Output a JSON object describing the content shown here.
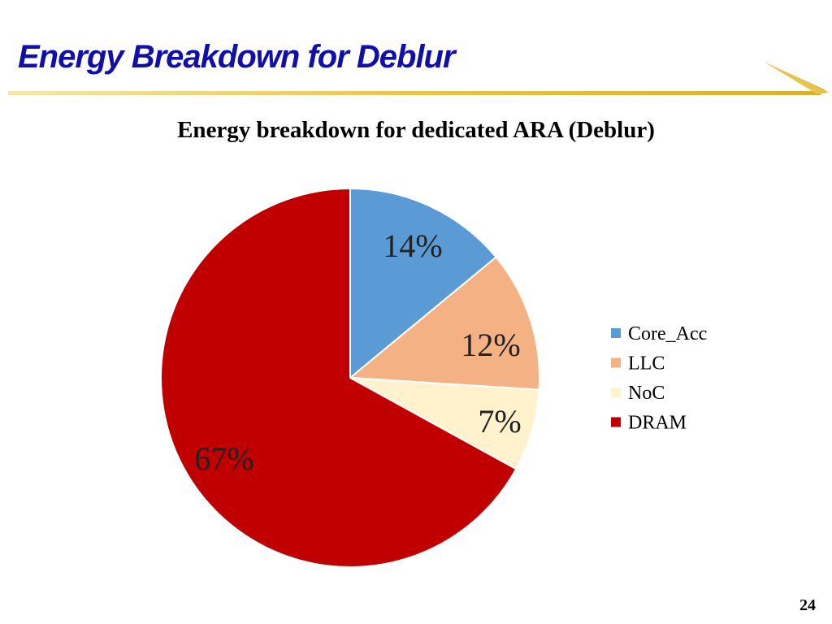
{
  "slide": {
    "title": "Energy Breakdown for Deblur",
    "page_number": "24"
  },
  "colors": {
    "title": "#1010a8",
    "rule": "#e8c44a"
  },
  "chart_data": {
    "type": "pie",
    "title": "Energy breakdown for dedicated ARA (Deblur)",
    "slices": [
      {
        "name": "Core_Acc",
        "value": 14,
        "label": "14%",
        "color": "#5b9bd5"
      },
      {
        "name": "LLC",
        "value": 12,
        "label": "12%",
        "color": "#f4b183"
      },
      {
        "name": "NoC",
        "value": 7,
        "label": "7%",
        "color": "#fff2cc"
      },
      {
        "name": "DRAM",
        "value": 67,
        "label": "67%",
        "color": "#c00000"
      }
    ],
    "legend": {
      "position": "right"
    }
  }
}
